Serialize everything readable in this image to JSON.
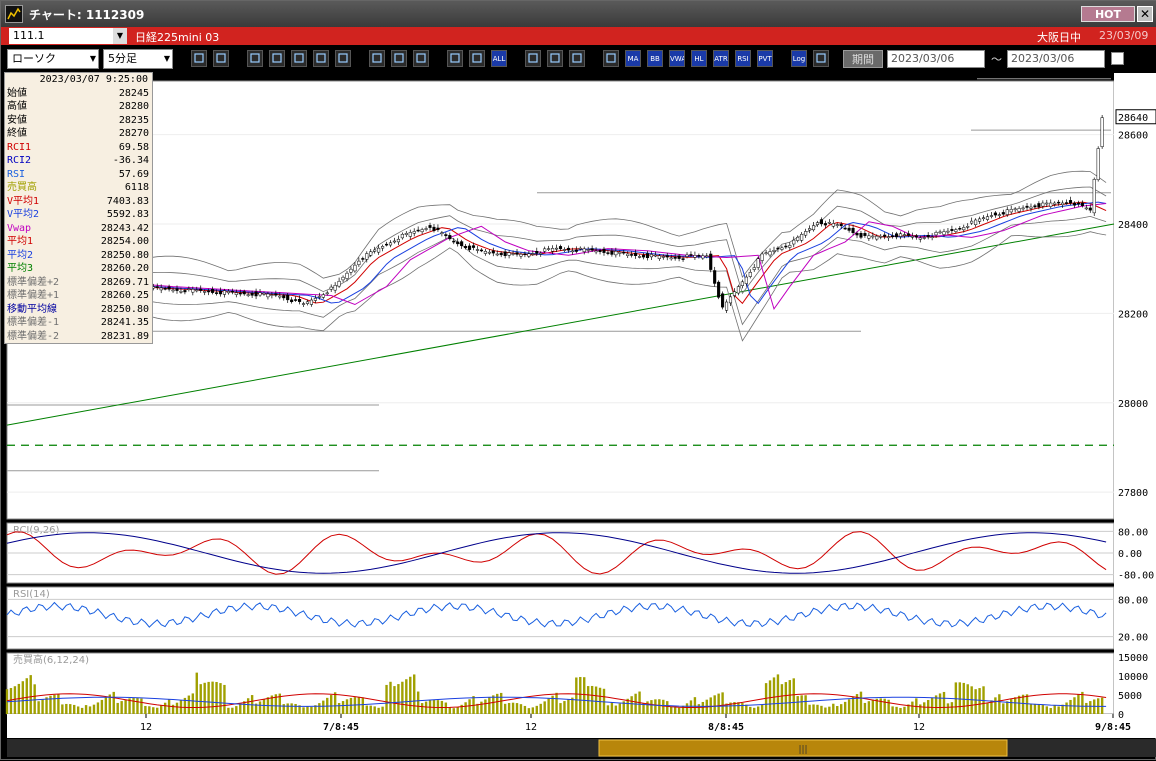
{
  "window": {
    "title": "チャート: 1112309",
    "hot_label": "HOT",
    "close_label": "✕"
  },
  "header": {
    "code": "111.1",
    "instrument": "日経225mini 03",
    "session": "大阪日中",
    "date": "23/03/09"
  },
  "toolbar": {
    "chart_type": "ローソク",
    "interval": "5分足",
    "period_label": "期間",
    "from_date": "2023/03/06",
    "to_date": "2023/03/06",
    "tilde": "～",
    "tools": [
      "zoom",
      "crosshair",
      "compare",
      "search",
      "scale",
      "multi",
      "measure",
      "trend",
      "pointer",
      "redo",
      "bar1",
      "bar2",
      "ALL",
      "gear",
      "pen",
      "color",
      "stk",
      "MA",
      "BB",
      "VWAP",
      "HL",
      "ATR",
      "RSI",
      "PVT",
      "Log",
      "layout"
    ]
  },
  "info": {
    "datetime": "2023/03/07  9:25:00",
    "rows": [
      {
        "label": "始値",
        "value": "28245",
        "color": "#000000"
      },
      {
        "label": "高値",
        "value": "28280",
        "color": "#000000"
      },
      {
        "label": "安値",
        "value": "28235",
        "color": "#000000"
      },
      {
        "label": "終値",
        "value": "28270",
        "color": "#000000"
      },
      {
        "label": "RCI1",
        "value": "69.58",
        "color": "#d00000"
      },
      {
        "label": "RCI2",
        "value": "-36.34",
        "color": "#0000c0"
      },
      {
        "label": "RSI",
        "value": "57.69",
        "color": "#1a60e0"
      },
      {
        "label": "売買高",
        "value": "6118",
        "color": "#a0a000"
      },
      {
        "label": "V平均1",
        "value": "7403.83",
        "color": "#d00000"
      },
      {
        "label": "V平均2",
        "value": "5592.83",
        "color": "#1a40e0"
      },
      {
        "label": "Vwap",
        "value": "28243.42",
        "color": "#c000c0"
      },
      {
        "label": "平均1",
        "value": "28254.00",
        "color": "#d00000"
      },
      {
        "label": "平均2",
        "value": "28250.80",
        "color": "#1a40e0"
      },
      {
        "label": "平均3",
        "value": "28260.20",
        "color": "#008000"
      },
      {
        "label": "標準偏差+2",
        "value": "28269.71",
        "color": "#707070"
      },
      {
        "label": "標準偏差+1",
        "value": "28260.25",
        "color": "#707070"
      },
      {
        "label": "移動平均線",
        "value": "28250.80",
        "color": "#0000a0"
      },
      {
        "label": "標準偏差-1",
        "value": "28241.35",
        "color": "#707070"
      },
      {
        "label": "標準偏差-2",
        "value": "28231.89",
        "color": "#707070"
      }
    ]
  },
  "price_axis": {
    "ticks": [
      28600,
      28400,
      28200,
      28000,
      27800
    ],
    "last": "28640"
  },
  "rci_panel": {
    "label": "RCI(9,26)",
    "ticks": [
      "80.00",
      "0.00",
      "-80.00"
    ]
  },
  "rsi_panel": {
    "label": "RSI(14)",
    "ticks": [
      "80.00",
      "20.00"
    ]
  },
  "vol_panel": {
    "label": "売買高(6,12,24)",
    "ticks": [
      "15000",
      "10000",
      "5000",
      "0"
    ]
  },
  "time_axis": {
    "labels": [
      "12",
      "7/8:45",
      "12",
      "8/8:45",
      "12",
      "9/8:45"
    ]
  },
  "colors": {
    "up": "#ffffff",
    "down": "#000000",
    "ma1": "#d00000",
    "ma2": "#1a40e0",
    "ma3": "#008000",
    "vwap": "#c000c0",
    "band": "#707070",
    "dash": "#008000",
    "vol": "#a0a000"
  }
}
